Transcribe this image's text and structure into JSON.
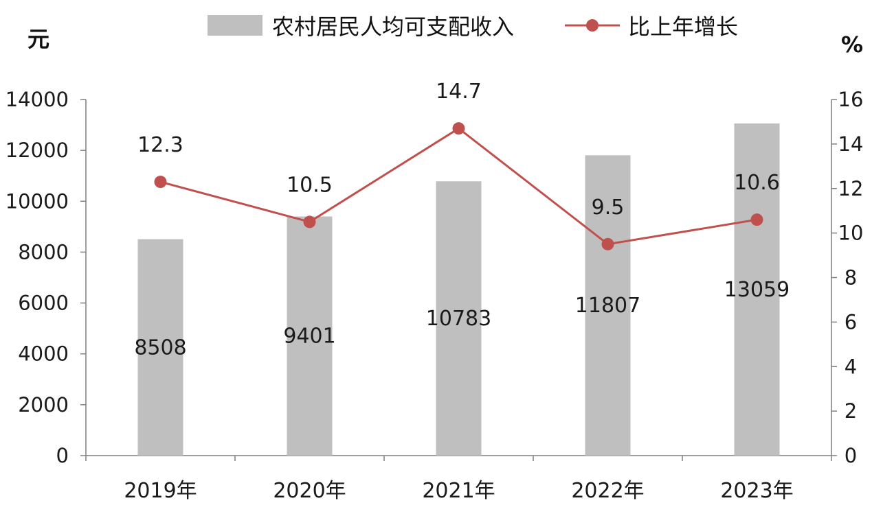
{
  "chart_data": {
    "type": "bar",
    "categories": [
      "2019年",
      "2020年",
      "2021年",
      "2022年",
      "2023年"
    ],
    "series": [
      {
        "name": "农村居民人均可支配收入",
        "type": "bar",
        "axis": "left",
        "color": "#bfbfbf",
        "values": [
          8508,
          9401,
          10783,
          11807,
          13059
        ],
        "labels": [
          "8508",
          "9401",
          "10783",
          "11807",
          "13059"
        ]
      },
      {
        "name": "比上年增长",
        "type": "line",
        "axis": "right",
        "color": "#c0504d",
        "values": [
          12.3,
          10.5,
          14.7,
          9.5,
          10.6
        ],
        "labels": [
          "12.3",
          "10.5",
          "14.7",
          "9.5",
          "10.6"
        ]
      }
    ],
    "y_left": {
      "unit": "元",
      "range": [
        0,
        14000
      ],
      "ticks": [
        "0",
        "2000",
        "4000",
        "6000",
        "8000",
        "10000",
        "12000",
        "14000"
      ]
    },
    "y_right": {
      "unit": "%",
      "range": [
        0,
        16
      ],
      "ticks": [
        "0",
        "2",
        "4",
        "6",
        "8",
        "10",
        "12",
        "14",
        "16"
      ]
    },
    "legend": "top",
    "grid": false
  }
}
